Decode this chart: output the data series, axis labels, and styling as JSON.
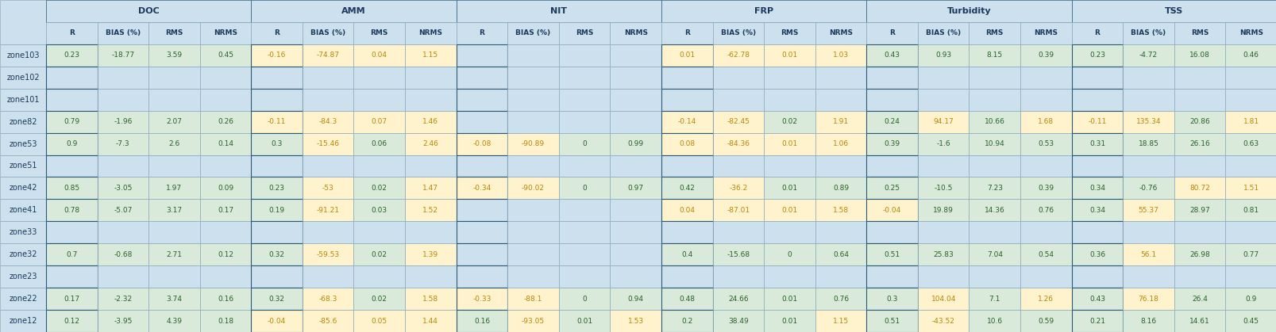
{
  "row_labels": [
    "zone103",
    "zone102",
    "zone101",
    "zone82",
    "zone53",
    "zone51",
    "zone42",
    "zone41",
    "zone33",
    "zone32",
    "zone23",
    "zone22",
    "zone12"
  ],
  "col_groups": [
    "DOC",
    "AMM",
    "NIT",
    "FRP",
    "Turbidity",
    "TSS"
  ],
  "sub_cols": [
    "R",
    "BIAS (%)",
    "RMS",
    "NRMS"
  ],
  "data": {
    "DOC": {
      "zone103": [
        0.23,
        -18.77,
        3.59,
        0.45
      ],
      "zone102": [
        null,
        null,
        null,
        null
      ],
      "zone101": [
        null,
        null,
        null,
        null
      ],
      "zone82": [
        0.79,
        -1.96,
        2.07,
        0.26
      ],
      "zone53": [
        0.9,
        -7.3,
        2.6,
        0.14
      ],
      "zone51": [
        null,
        null,
        null,
        null
      ],
      "zone42": [
        0.85,
        -3.05,
        1.97,
        0.09
      ],
      "zone41": [
        0.78,
        -5.07,
        3.17,
        0.17
      ],
      "zone33": [
        null,
        null,
        null,
        null
      ],
      "zone32": [
        0.7,
        -0.68,
        2.71,
        0.12
      ],
      "zone23": [
        null,
        null,
        null,
        null
      ],
      "zone22": [
        0.17,
        -2.32,
        3.74,
        0.16
      ],
      "zone12": [
        0.12,
        -3.95,
        4.39,
        0.18
      ]
    },
    "AMM": {
      "zone103": [
        -0.16,
        -74.87,
        0.04,
        1.15
      ],
      "zone102": [
        null,
        null,
        null,
        null
      ],
      "zone101": [
        null,
        null,
        null,
        null
      ],
      "zone82": [
        -0.11,
        -84.3,
        0.07,
        1.46
      ],
      "zone53": [
        0.3,
        -15.46,
        0.06,
        2.46
      ],
      "zone51": [
        null,
        null,
        null,
        null
      ],
      "zone42": [
        0.23,
        -53,
        0.02,
        1.47
      ],
      "zone41": [
        0.19,
        -91.21,
        0.03,
        1.52
      ],
      "zone33": [
        null,
        null,
        null,
        null
      ],
      "zone32": [
        0.32,
        -59.53,
        0.02,
        1.39
      ],
      "zone23": [
        null,
        null,
        null,
        null
      ],
      "zone22": [
        0.32,
        -68.3,
        0.02,
        1.58
      ],
      "zone12": [
        -0.04,
        -85.6,
        0.05,
        1.44
      ]
    },
    "NIT": {
      "zone103": [
        null,
        null,
        null,
        null
      ],
      "zone102": [
        null,
        null,
        null,
        null
      ],
      "zone101": [
        null,
        null,
        null,
        null
      ],
      "zone82": [
        null,
        null,
        null,
        null
      ],
      "zone53": [
        -0.08,
        -90.89,
        0,
        0.99
      ],
      "zone51": [
        null,
        null,
        null,
        null
      ],
      "zone42": [
        -0.34,
        -90.02,
        0,
        0.97
      ],
      "zone41": [
        null,
        null,
        null,
        null
      ],
      "zone33": [
        null,
        null,
        null,
        null
      ],
      "zone32": [
        null,
        null,
        null,
        null
      ],
      "zone23": [
        null,
        null,
        null,
        null
      ],
      "zone22": [
        -0.33,
        -88.1,
        0,
        0.94
      ],
      "zone12": [
        0.16,
        -93.05,
        0.01,
        1.53
      ]
    },
    "FRP": {
      "zone103": [
        0.01,
        -62.78,
        0.01,
        1.03
      ],
      "zone102": [
        null,
        null,
        null,
        null
      ],
      "zone101": [
        null,
        null,
        null,
        null
      ],
      "zone82": [
        -0.14,
        -82.45,
        0.02,
        1.91
      ],
      "zone53": [
        0.08,
        -84.36,
        0.01,
        1.06
      ],
      "zone51": [
        null,
        null,
        null,
        null
      ],
      "zone42": [
        0.42,
        -36.2,
        0.01,
        0.89
      ],
      "zone41": [
        0.04,
        -87.01,
        0.01,
        1.58
      ],
      "zone33": [
        null,
        null,
        null,
        null
      ],
      "zone32": [
        0.4,
        -15.68,
        0,
        0.64
      ],
      "zone23": [
        null,
        null,
        null,
        null
      ],
      "zone22": [
        0.48,
        24.66,
        0.01,
        0.76
      ],
      "zone12": [
        0.2,
        38.49,
        0.01,
        1.15
      ]
    },
    "Turbidity": {
      "zone103": [
        0.43,
        0.93,
        8.15,
        0.39
      ],
      "zone102": [
        null,
        null,
        null,
        null
      ],
      "zone101": [
        null,
        null,
        null,
        null
      ],
      "zone82": [
        0.24,
        94.17,
        10.66,
        1.68
      ],
      "zone53": [
        0.39,
        -1.6,
        10.94,
        0.53
      ],
      "zone51": [
        null,
        null,
        null,
        null
      ],
      "zone42": [
        0.25,
        -10.5,
        7.23,
        0.39
      ],
      "zone41": [
        -0.04,
        19.89,
        14.36,
        0.76
      ],
      "zone33": [
        null,
        null,
        null,
        null
      ],
      "zone32": [
        0.51,
        25.83,
        7.04,
        0.54
      ],
      "zone23": [
        null,
        null,
        null,
        null
      ],
      "zone22": [
        0.3,
        104.04,
        7.1,
        1.26
      ],
      "zone12": [
        0.51,
        -43.52,
        10.6,
        0.59
      ]
    },
    "TSS": {
      "zone103": [
        0.23,
        -4.72,
        16.08,
        0.46
      ],
      "zone102": [
        null,
        null,
        null,
        null
      ],
      "zone101": [
        null,
        null,
        null,
        null
      ],
      "zone82": [
        -0.11,
        135.34,
        20.86,
        1.81
      ],
      "zone53": [
        0.31,
        18.85,
        26.16,
        0.63
      ],
      "zone51": [
        null,
        null,
        null,
        null
      ],
      "zone42": [
        0.34,
        -0.76,
        80.72,
        1.51
      ],
      "zone41": [
        0.34,
        55.37,
        28.97,
        0.81
      ],
      "zone33": [
        null,
        null,
        null,
        null
      ],
      "zone32": [
        0.36,
        56.1,
        26.98,
        0.77
      ],
      "zone23": [
        null,
        null,
        null,
        null
      ],
      "zone22": [
        0.43,
        76.18,
        26.4,
        0.9
      ],
      "zone12": [
        0.21,
        8.16,
        14.61,
        0.45
      ]
    }
  },
  "colors": {
    "header_bg": "#cde0ed",
    "header_text": "#1b3a5c",
    "row_label_bg": "#cde0ed",
    "row_label_text": "#1b3a5c",
    "empty_bg": "#cde0ed",
    "green_bg": "#daeada",
    "green_text": "#276127",
    "yellow_bg": "#fef3cc",
    "yellow_text": "#b8860b",
    "border": "#8aaabb",
    "border_thick": "#2a5a7a"
  },
  "cell_colors": {
    "DOC": {
      "zone103": [
        "green",
        "green",
        "green",
        "green"
      ],
      "zone82": [
        "green",
        "green",
        "green",
        "green"
      ],
      "zone53": [
        "green",
        "green",
        "green",
        "green"
      ],
      "zone42": [
        "green",
        "green",
        "green",
        "green"
      ],
      "zone41": [
        "green",
        "green",
        "green",
        "green"
      ],
      "zone32": [
        "green",
        "green",
        "green",
        "green"
      ],
      "zone22": [
        "green",
        "green",
        "green",
        "green"
      ],
      "zone12": [
        "green",
        "green",
        "green",
        "green"
      ]
    },
    "AMM": {
      "zone103": [
        "yellow",
        "yellow",
        "yellow",
        "yellow"
      ],
      "zone82": [
        "yellow",
        "yellow",
        "yellow",
        "yellow"
      ],
      "zone53": [
        "green",
        "yellow",
        "green",
        "yellow"
      ],
      "zone42": [
        "green",
        "yellow",
        "green",
        "yellow"
      ],
      "zone41": [
        "green",
        "yellow",
        "green",
        "yellow"
      ],
      "zone32": [
        "green",
        "yellow",
        "green",
        "yellow"
      ],
      "zone22": [
        "green",
        "yellow",
        "green",
        "yellow"
      ],
      "zone12": [
        "yellow",
        "yellow",
        "yellow",
        "yellow"
      ]
    },
    "NIT": {
      "zone53": [
        "yellow",
        "yellow",
        "green",
        "green"
      ],
      "zone42": [
        "yellow",
        "yellow",
        "green",
        "green"
      ],
      "zone22": [
        "yellow",
        "yellow",
        "green",
        "green"
      ],
      "zone12": [
        "green",
        "yellow",
        "green",
        "yellow"
      ]
    },
    "FRP": {
      "zone103": [
        "yellow",
        "yellow",
        "yellow",
        "yellow"
      ],
      "zone82": [
        "yellow",
        "yellow",
        "green",
        "yellow"
      ],
      "zone53": [
        "yellow",
        "yellow",
        "yellow",
        "yellow"
      ],
      "zone42": [
        "green",
        "yellow",
        "green",
        "green"
      ],
      "zone41": [
        "yellow",
        "yellow",
        "yellow",
        "yellow"
      ],
      "zone32": [
        "green",
        "green",
        "green",
        "green"
      ],
      "zone22": [
        "green",
        "green",
        "green",
        "green"
      ],
      "zone12": [
        "green",
        "green",
        "green",
        "yellow"
      ]
    },
    "Turbidity": {
      "zone103": [
        "green",
        "green",
        "green",
        "green"
      ],
      "zone82": [
        "green",
        "yellow",
        "green",
        "yellow"
      ],
      "zone53": [
        "green",
        "green",
        "green",
        "green"
      ],
      "zone42": [
        "green",
        "green",
        "green",
        "green"
      ],
      "zone41": [
        "yellow",
        "green",
        "green",
        "green"
      ],
      "zone32": [
        "green",
        "green",
        "green",
        "green"
      ],
      "zone22": [
        "green",
        "yellow",
        "green",
        "yellow"
      ],
      "zone12": [
        "green",
        "yellow",
        "green",
        "green"
      ]
    },
    "TSS": {
      "zone103": [
        "green",
        "green",
        "green",
        "green"
      ],
      "zone82": [
        "yellow",
        "yellow",
        "green",
        "yellow"
      ],
      "zone53": [
        "green",
        "green",
        "green",
        "green"
      ],
      "zone42": [
        "green",
        "green",
        "yellow",
        "yellow"
      ],
      "zone41": [
        "green",
        "yellow",
        "green",
        "green"
      ],
      "zone32": [
        "green",
        "yellow",
        "green",
        "green"
      ],
      "zone22": [
        "green",
        "yellow",
        "green",
        "green"
      ],
      "zone12": [
        "green",
        "green",
        "green",
        "green"
      ]
    }
  }
}
